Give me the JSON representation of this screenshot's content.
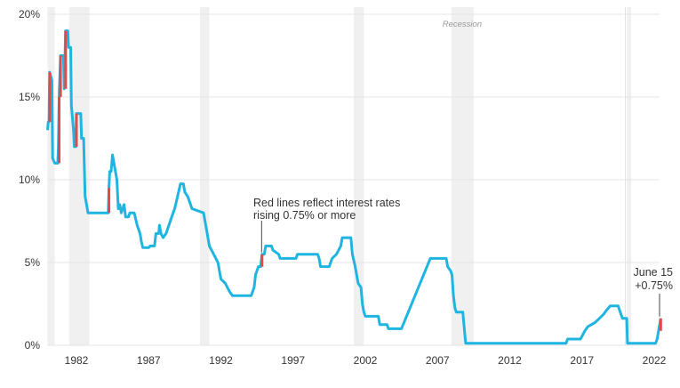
{
  "chart_data": {
    "type": "line",
    "title": "",
    "xlabel": "",
    "ylabel": "",
    "xlim": [
      1980.0,
      2022.45
    ],
    "ylim": [
      0,
      20
    ],
    "grid": true,
    "y_ticks": [
      0,
      5,
      10,
      15,
      20
    ],
    "y_tick_labels": [
      "0%",
      "5%",
      "10%",
      "15%",
      "20%"
    ],
    "x_ticks": [
      1982,
      1987,
      1992,
      1997,
      2002,
      2007,
      2012,
      2017,
      2022
    ],
    "x_tick_labels": [
      "1982",
      "1987",
      "1992",
      "1997",
      "2002",
      "2007",
      "2012",
      "2017",
      "2022"
    ],
    "colors": {
      "line": "#1fb5e0",
      "rise": "#e24a4a",
      "recession": "#f0f0f0",
      "grid": "#e4e4e4"
    },
    "recession_label": "Recession",
    "recessions": [
      [
        1980.0,
        1980.5
      ],
      [
        1981.5,
        1982.9
      ],
      [
        1990.55,
        1991.2
      ],
      [
        2001.2,
        2001.9
      ],
      [
        2007.95,
        2009.5
      ],
      [
        2020.1,
        2020.35
      ]
    ],
    "series": [
      {
        "points": [
          [
            1980.0,
            13.0
          ],
          [
            1980.05,
            13.5
          ],
          [
            1980.1,
            13.5
          ],
          [
            1980.15,
            16.5
          ],
          [
            1980.3,
            16.0
          ],
          [
            1980.35,
            11.3
          ],
          [
            1980.5,
            11.0
          ],
          [
            1980.7,
            11.0
          ],
          [
            1980.75,
            12.0
          ],
          [
            1980.8,
            15.0
          ],
          [
            1980.9,
            17.5
          ],
          [
            1981.1,
            17.5
          ],
          [
            1981.15,
            15.5
          ],
          [
            1981.25,
            19.0
          ],
          [
            1981.4,
            19.0
          ],
          [
            1981.45,
            18.0
          ],
          [
            1981.6,
            18.0
          ],
          [
            1981.65,
            14.5
          ],
          [
            1981.8,
            13.0
          ],
          [
            1981.85,
            12.0
          ],
          [
            1981.95,
            12.0
          ],
          [
            1982.0,
            14.0
          ],
          [
            1982.3,
            14.0
          ],
          [
            1982.35,
            12.5
          ],
          [
            1982.5,
            12.5
          ],
          [
            1982.6,
            9.0
          ],
          [
            1982.7,
            8.5
          ],
          [
            1982.8,
            8.0
          ],
          [
            1984.2,
            8.0
          ],
          [
            1984.25,
            9.5
          ],
          [
            1984.3,
            10.5
          ],
          [
            1984.4,
            10.5
          ],
          [
            1984.5,
            11.5
          ],
          [
            1984.6,
            11.0
          ],
          [
            1984.8,
            10.0
          ],
          [
            1984.9,
            8.25
          ],
          [
            1985.0,
            8.5
          ],
          [
            1985.1,
            8.0
          ],
          [
            1985.3,
            8.5
          ],
          [
            1985.4,
            7.75
          ],
          [
            1985.6,
            7.75
          ],
          [
            1985.7,
            8.0
          ],
          [
            1986.0,
            8.0
          ],
          [
            1986.2,
            7.25
          ],
          [
            1986.4,
            6.75
          ],
          [
            1986.5,
            6.25
          ],
          [
            1986.6,
            5.9
          ],
          [
            1987.0,
            5.9
          ],
          [
            1987.1,
            6.0
          ],
          [
            1987.4,
            6.0
          ],
          [
            1987.5,
            6.75
          ],
          [
            1987.7,
            6.75
          ],
          [
            1987.75,
            7.25
          ],
          [
            1987.85,
            6.75
          ],
          [
            1988.0,
            6.5
          ],
          [
            1988.2,
            6.75
          ],
          [
            1988.4,
            7.25
          ],
          [
            1988.6,
            7.75
          ],
          [
            1988.8,
            8.25
          ],
          [
            1989.0,
            9.0
          ],
          [
            1989.2,
            9.75
          ],
          [
            1989.4,
            9.75
          ],
          [
            1989.5,
            9.25
          ],
          [
            1989.7,
            9.0
          ],
          [
            1989.9,
            8.5
          ],
          [
            1990.0,
            8.25
          ],
          [
            1990.8,
            8.0
          ],
          [
            1991.0,
            7.0
          ],
          [
            1991.2,
            6.0
          ],
          [
            1991.5,
            5.5
          ],
          [
            1991.8,
            5.0
          ],
          [
            1992.0,
            4.0
          ],
          [
            1992.3,
            3.75
          ],
          [
            1992.6,
            3.25
          ],
          [
            1992.8,
            3.0
          ],
          [
            1994.1,
            3.0
          ],
          [
            1994.3,
            3.5
          ],
          [
            1994.4,
            4.25
          ],
          [
            1994.6,
            4.75
          ],
          [
            1994.75,
            4.75
          ],
          [
            1994.85,
            5.5
          ],
          [
            1995.0,
            5.5
          ],
          [
            1995.1,
            6.0
          ],
          [
            1995.5,
            6.0
          ],
          [
            1995.6,
            5.75
          ],
          [
            1996.0,
            5.5
          ],
          [
            1996.1,
            5.25
          ],
          [
            1997.2,
            5.25
          ],
          [
            1997.3,
            5.5
          ],
          [
            1998.7,
            5.5
          ],
          [
            1998.8,
            5.25
          ],
          [
            1998.9,
            4.75
          ],
          [
            1999.5,
            4.75
          ],
          [
            1999.7,
            5.25
          ],
          [
            2000.0,
            5.5
          ],
          [
            2000.3,
            6.0
          ],
          [
            2000.4,
            6.5
          ],
          [
            2001.0,
            6.5
          ],
          [
            2001.1,
            5.5
          ],
          [
            2001.3,
            4.75
          ],
          [
            2001.5,
            3.75
          ],
          [
            2001.7,
            3.5
          ],
          [
            2001.8,
            2.5
          ],
          [
            2001.9,
            2.0
          ],
          [
            2002.0,
            1.75
          ],
          [
            2002.9,
            1.75
          ],
          [
            2003.0,
            1.25
          ],
          [
            2003.5,
            1.25
          ],
          [
            2003.6,
            1.0
          ],
          [
            2004.5,
            1.0
          ],
          [
            2006.5,
            5.25
          ],
          [
            2007.6,
            5.25
          ],
          [
            2007.7,
            4.75
          ],
          [
            2007.9,
            4.5
          ],
          [
            2008.0,
            4.25
          ],
          [
            2008.1,
            3.0
          ],
          [
            2008.2,
            2.25
          ],
          [
            2008.3,
            2.0
          ],
          [
            2008.75,
            2.0
          ],
          [
            2008.8,
            1.5
          ],
          [
            2008.95,
            0.125
          ],
          [
            2015.9,
            0.125
          ],
          [
            2016.0,
            0.375
          ],
          [
            2016.9,
            0.375
          ],
          [
            2017.2,
            0.875
          ],
          [
            2017.4,
            1.125
          ],
          [
            2017.9,
            1.375
          ],
          [
            2018.2,
            1.625
          ],
          [
            2018.5,
            1.875
          ],
          [
            2018.7,
            2.125
          ],
          [
            2018.95,
            2.375
          ],
          [
            2019.5,
            2.375
          ],
          [
            2019.6,
            2.125
          ],
          [
            2019.7,
            1.875
          ],
          [
            2019.8,
            1.625
          ],
          [
            2020.1,
            1.625
          ],
          [
            2020.15,
            0.125
          ],
          [
            2022.1,
            0.125
          ],
          [
            2022.2,
            0.375
          ],
          [
            2022.3,
            0.875
          ],
          [
            2022.45,
            1.625
          ]
        ]
      }
    ],
    "rises_075_or_more": [
      [
        1980.15,
        13.5,
        16.5
      ],
      [
        1980.8,
        11.0,
        15.0
      ],
      [
        1980.9,
        15.0,
        17.5
      ],
      [
        1981.25,
        15.5,
        19.0
      ],
      [
        1982.0,
        12.0,
        14.0
      ],
      [
        1984.25,
        8.0,
        9.5
      ],
      [
        1994.85,
        4.75,
        5.5
      ],
      [
        2022.45,
        0.875,
        1.625
      ]
    ],
    "annotations": [
      {
        "lines": [
          "Red lines reflect interest rates",
          "rising 0.75% or more"
        ],
        "x": 1994.85,
        "y": 5.5
      },
      {
        "lines": [
          "June 15",
          "+0.75%"
        ],
        "x": 2022.45,
        "y": 1.625
      }
    ]
  }
}
